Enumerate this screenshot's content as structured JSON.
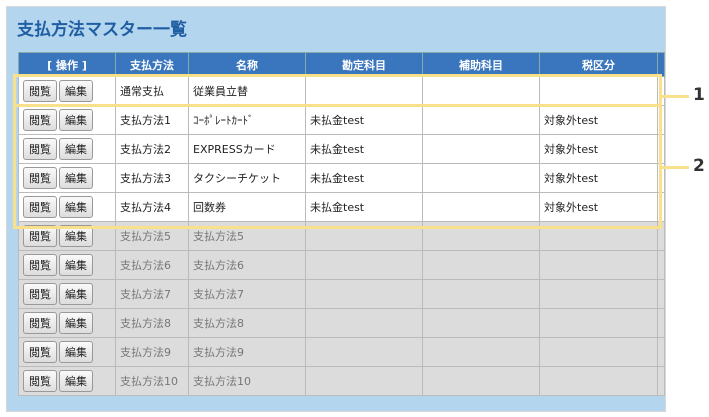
{
  "title": "支払方法マスター一覧",
  "columns": [
    "[ 操作 ]",
    "支払方法",
    "名称",
    "勘定科目",
    "補助科目",
    "税区分",
    ""
  ],
  "buttons": {
    "view": "閲覧",
    "edit": "編集"
  },
  "rows": [
    {
      "method": "通常支払",
      "name": "従業員立替",
      "account": "",
      "sub": "",
      "tax": "",
      "active": true
    },
    {
      "method": "支払方法1",
      "name": "ｺｰﾎﾟﾚｰﾄｶｰﾄﾞ",
      "account": "未払金test",
      "sub": "",
      "tax": "対象外test",
      "active": true
    },
    {
      "method": "支払方法2",
      "name": "EXPRESSカード",
      "account": "未払金test",
      "sub": "",
      "tax": "対象外test",
      "active": true
    },
    {
      "method": "支払方法3",
      "name": "タクシーチケット",
      "account": "未払金test",
      "sub": "",
      "tax": "対象外test",
      "active": true
    },
    {
      "method": "支払方法4",
      "name": "回数券",
      "account": "未払金test",
      "sub": "",
      "tax": "対象外test",
      "active": true
    },
    {
      "method": "支払方法5",
      "name": "支払方法5",
      "account": "",
      "sub": "",
      "tax": "",
      "active": false
    },
    {
      "method": "支払方法6",
      "name": "支払方法6",
      "account": "",
      "sub": "",
      "tax": "",
      "active": false
    },
    {
      "method": "支払方法7",
      "name": "支払方法7",
      "account": "",
      "sub": "",
      "tax": "",
      "active": false
    },
    {
      "method": "支払方法8",
      "name": "支払方法8",
      "account": "",
      "sub": "",
      "tax": "",
      "active": false
    },
    {
      "method": "支払方法9",
      "name": "支払方法9",
      "account": "",
      "sub": "",
      "tax": "",
      "active": false
    },
    {
      "method": "支払方法10",
      "name": "支払方法10",
      "account": "",
      "sub": "",
      "tax": "",
      "active": false
    }
  ],
  "callouts": [
    "1",
    "2"
  ],
  "colors": {
    "header": "#3a76bd",
    "panel": "#b3d5ee",
    "highlight": "#f9e08a"
  }
}
